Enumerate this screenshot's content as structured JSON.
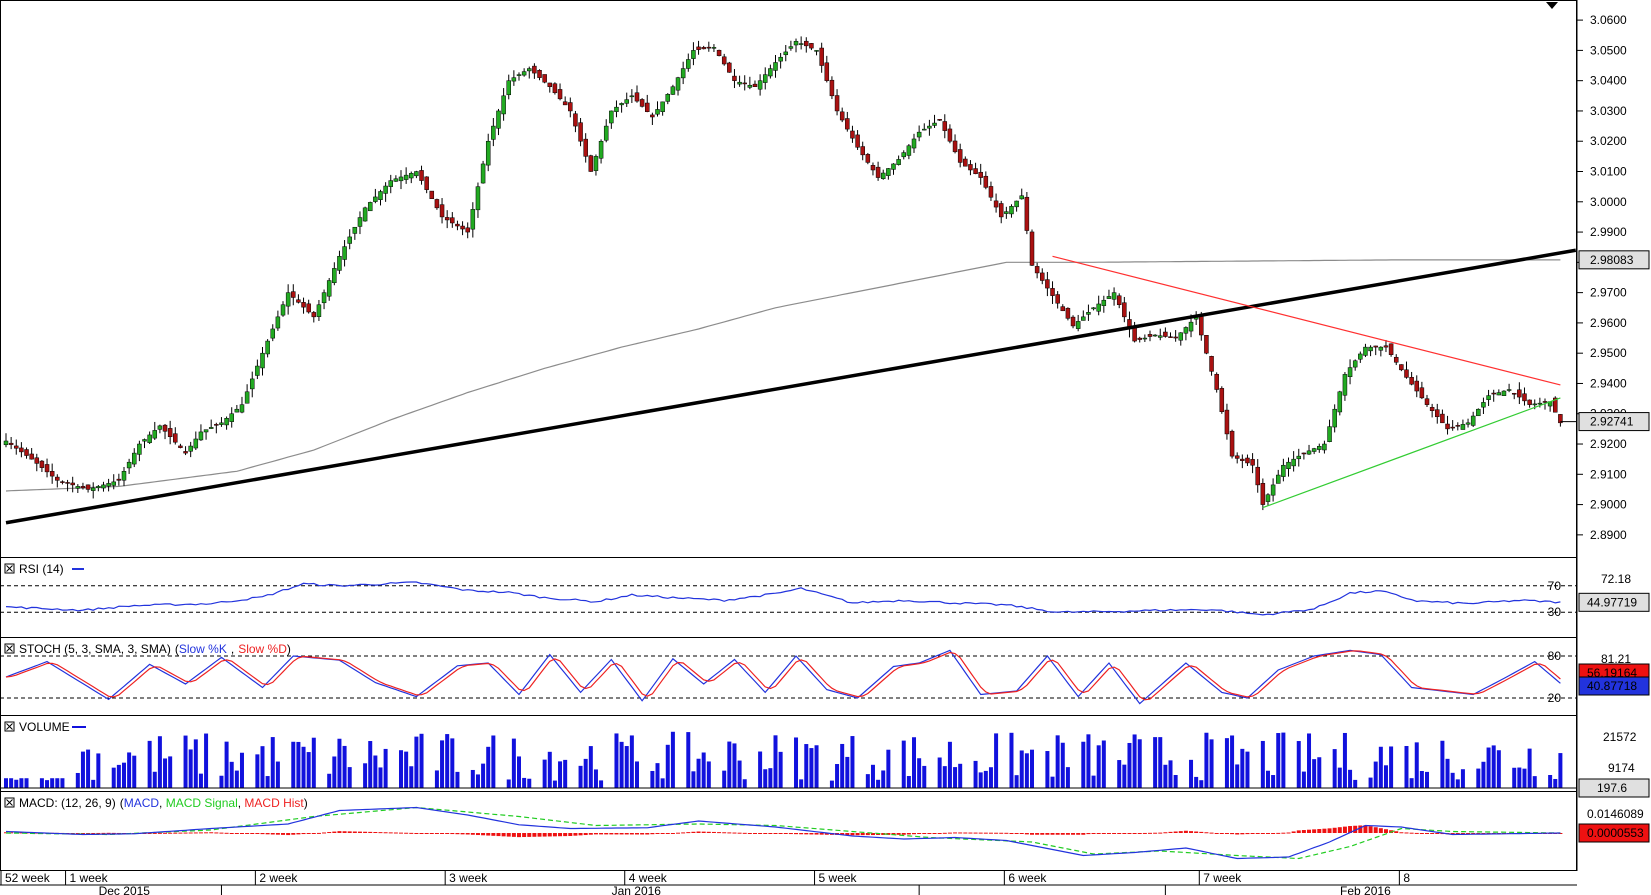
{
  "colors": {
    "bull": "#22aa22",
    "bear": "#aa1111",
    "sma": "#8c8c8c",
    "trend_black": "#000000",
    "trend_red": "#ff3030",
    "trend_green": "#33cc33",
    "rsi": "#2233dd",
    "stoch_k": "#2233dd",
    "stoch_d": "#ee2222",
    "volume": "#1111dd",
    "macd": "#2233dd",
    "macd_signal": "#22cc22",
    "macd_hist": "#ee1111",
    "last_price_box": "#e0e0e0",
    "red_box": "#ee1111"
  },
  "chart_data": {
    "type": "candlestick",
    "price": {
      "ylim": [
        2.885,
        3.064
      ],
      "ticks": [
        "2.8900",
        "2.9000",
        "2.9100",
        "2.9200",
        "2.9300",
        "2.9400",
        "2.9500",
        "2.9600",
        "2.9700",
        "2.9800",
        "2.9900",
        "3.0000",
        "3.0100",
        "3.0200",
        "3.0300",
        "3.0400",
        "3.0500",
        "3.0600"
      ],
      "last_price": "2.92741",
      "sma_label": "2.98083",
      "anchors": [
        [
          0,
          2.921
        ],
        [
          5,
          2.915
        ],
        [
          10,
          2.908
        ],
        [
          16,
          2.905
        ],
        [
          22,
          2.908
        ],
        [
          26,
          2.92
        ],
        [
          30,
          2.926
        ],
        [
          35,
          2.917
        ],
        [
          38,
          2.924
        ],
        [
          42,
          2.927
        ],
        [
          46,
          2.933
        ],
        [
          50,
          2.95
        ],
        [
          55,
          2.97
        ],
        [
          60,
          2.962
        ],
        [
          65,
          2.982
        ],
        [
          70,
          2.998
        ],
        [
          75,
          3.007
        ],
        [
          80,
          3.01
        ],
        [
          85,
          2.995
        ],
        [
          90,
          2.99
        ],
        [
          94,
          3.02
        ],
        [
          98,
          3.04
        ],
        [
          102,
          3.044
        ],
        [
          106,
          3.038
        ],
        [
          110,
          3.03
        ],
        [
          114,
          3.01
        ],
        [
          118,
          3.03
        ],
        [
          122,
          3.035
        ],
        [
          126,
          3.028
        ],
        [
          130,
          3.038
        ],
        [
          134,
          3.05
        ],
        [
          138,
          3.051
        ],
        [
          142,
          3.04
        ],
        [
          146,
          3.038
        ],
        [
          150,
          3.046
        ],
        [
          154,
          3.053
        ],
        [
          158,
          3.05
        ],
        [
          162,
          3.03
        ],
        [
          166,
          3.018
        ],
        [
          170,
          3.008
        ],
        [
          174,
          3.014
        ],
        [
          178,
          3.023
        ],
        [
          182,
          3.027
        ],
        [
          186,
          3.013
        ],
        [
          190,
          3.008
        ],
        [
          194,
          2.995
        ],
        [
          198,
          3.002
        ],
        [
          200,
          2.979
        ],
        [
          204,
          2.969
        ],
        [
          208,
          2.959
        ],
        [
          212,
          2.965
        ],
        [
          216,
          2.97
        ],
        [
          220,
          2.954
        ],
        [
          224,
          2.956
        ],
        [
          228,
          2.955
        ],
        [
          232,
          2.962
        ],
        [
          236,
          2.938
        ],
        [
          239,
          2.916
        ],
        [
          243,
          2.913
        ],
        [
          245,
          2.9
        ],
        [
          249,
          2.913
        ],
        [
          253,
          2.917
        ],
        [
          257,
          2.92
        ],
        [
          261,
          2.943
        ],
        [
          265,
          2.952
        ],
        [
          269,
          2.952
        ],
        [
          273,
          2.942
        ],
        [
          277,
          2.933
        ],
        [
          281,
          2.925
        ],
        [
          285,
          2.927
        ],
        [
          289,
          2.936
        ],
        [
          293,
          2.938
        ],
        [
          297,
          2.933
        ],
        [
          301,
          2.934
        ],
        [
          303,
          2.927
        ]
      ],
      "sma_anchors": [
        [
          0,
          2.9045
        ],
        [
          22,
          2.906
        ],
        [
          45,
          2.911
        ],
        [
          60,
          2.918
        ],
        [
          75,
          2.928
        ],
        [
          90,
          2.937
        ],
        [
          105,
          2.945
        ],
        [
          120,
          2.952
        ],
        [
          135,
          2.958
        ],
        [
          150,
          2.965
        ],
        [
          165,
          2.97
        ],
        [
          180,
          2.975
        ],
        [
          195,
          2.98
        ],
        [
          210,
          2.98
        ],
        [
          240,
          2.9804
        ],
        [
          270,
          2.9808
        ],
        [
          303,
          2.9808
        ]
      ],
      "trendlines": [
        {
          "color": "trend_black",
          "from": [
            0,
            2.894
          ],
          "to": [
            306,
            2.984
          ]
        },
        {
          "color": "trend_red",
          "from": [
            204,
            2.982
          ],
          "to": [
            303,
            2.9395
          ]
        },
        {
          "color": "trend_green",
          "from": [
            245,
            2.899
          ],
          "to": [
            303,
            2.9352
          ]
        }
      ]
    },
    "rsi": {
      "title": "RSI (14)",
      "levels": [
        "70",
        "30"
      ],
      "value_label": "72.18",
      "current": "44.97719",
      "anchors": [
        [
          0,
          38
        ],
        [
          15,
          33
        ],
        [
          25,
          40
        ],
        [
          40,
          43
        ],
        [
          50,
          53
        ],
        [
          58,
          73
        ],
        [
          65,
          70
        ],
        [
          80,
          75
        ],
        [
          90,
          63
        ],
        [
          98,
          60
        ],
        [
          105,
          52
        ],
        [
          115,
          46
        ],
        [
          122,
          56
        ],
        [
          130,
          52
        ],
        [
          140,
          48
        ],
        [
          150,
          58
        ],
        [
          155,
          66
        ],
        [
          165,
          44
        ],
        [
          175,
          48
        ],
        [
          185,
          44
        ],
        [
          195,
          41
        ],
        [
          205,
          30
        ],
        [
          215,
          31
        ],
        [
          225,
          33
        ],
        [
          235,
          34
        ],
        [
          240,
          30
        ],
        [
          245,
          26
        ],
        [
          255,
          35
        ],
        [
          262,
          59
        ],
        [
          268,
          62
        ],
        [
          275,
          47
        ],
        [
          285,
          43
        ],
        [
          295,
          48
        ],
        [
          303,
          45
        ]
      ]
    },
    "stoch": {
      "title": "STOCH (5, 3, SMA, 3, SMA)",
      "k_label": "Slow %K",
      "d_label": "Slow %D",
      "levels": [
        "80",
        "20"
      ],
      "value_label": "81.21",
      "k_current": "40.87718",
      "d_current": "56.19164",
      "anchors": [
        [
          0,
          50
        ],
        [
          8,
          72
        ],
        [
          20,
          18
        ],
        [
          28,
          68
        ],
        [
          35,
          40
        ],
        [
          42,
          78
        ],
        [
          50,
          35
        ],
        [
          56,
          80
        ],
        [
          65,
          74
        ],
        [
          72,
          42
        ],
        [
          80,
          22
        ],
        [
          88,
          66
        ],
        [
          94,
          70
        ],
        [
          100,
          25
        ],
        [
          106,
          82
        ],
        [
          112,
          28
        ],
        [
          118,
          75
        ],
        [
          124,
          16
        ],
        [
          130,
          76
        ],
        [
          136,
          40
        ],
        [
          142,
          75
        ],
        [
          148,
          28
        ],
        [
          154,
          80
        ],
        [
          160,
          32
        ],
        [
          166,
          20
        ],
        [
          173,
          65
        ],
        [
          178,
          70
        ],
        [
          184,
          88
        ],
        [
          190,
          25
        ],
        [
          197,
          30
        ],
        [
          203,
          80
        ],
        [
          209,
          22
        ],
        [
          215,
          70
        ],
        [
          221,
          12
        ],
        [
          230,
          70
        ],
        [
          237,
          28
        ],
        [
          242,
          20
        ],
        [
          248,
          60
        ],
        [
          255,
          80
        ],
        [
          262,
          88
        ],
        [
          268,
          82
        ],
        [
          274,
          35
        ],
        [
          280,
          30
        ],
        [
          286,
          25
        ],
        [
          292,
          48
        ],
        [
          298,
          72
        ],
        [
          303,
          41
        ]
      ]
    },
    "volume": {
      "title": "VOLUME",
      "ticks": [
        "21572",
        "9174"
      ],
      "current": "197.6",
      "ylim": [
        0,
        27000
      ]
    },
    "macd": {
      "title": "MACD: (12, 26, 9)",
      "labels": [
        "MACD",
        "MACD Signal",
        "MACD Hist"
      ],
      "value_label": "0.0146089",
      "current": "0.0000553",
      "macd_anchors": [
        [
          0,
          0.001
        ],
        [
          15,
          -0.001
        ],
        [
          25,
          -0.0005
        ],
        [
          40,
          0.003
        ],
        [
          55,
          0.006
        ],
        [
          65,
          0.015
        ],
        [
          80,
          0.017
        ],
        [
          90,
          0.012
        ],
        [
          100,
          0.0055
        ],
        [
          110,
          0.003
        ],
        [
          125,
          0.0035
        ],
        [
          135,
          0.008
        ],
        [
          150,
          0.004
        ],
        [
          165,
          -0.002
        ],
        [
          175,
          -0.004
        ],
        [
          185,
          -0.003
        ],
        [
          195,
          -0.005
        ],
        [
          210,
          -0.015
        ],
        [
          220,
          -0.013
        ],
        [
          230,
          -0.01
        ],
        [
          240,
          -0.017
        ],
        [
          250,
          -0.016
        ],
        [
          258,
          -0.006
        ],
        [
          265,
          0.005
        ],
        [
          272,
          0.004
        ],
        [
          282,
          -0.001
        ],
        [
          303,
          0.0
        ]
      ],
      "signal_anchors": [
        [
          0,
          0.0
        ],
        [
          20,
          -0.001
        ],
        [
          40,
          0.002
        ],
        [
          60,
          0.011
        ],
        [
          80,
          0.017
        ],
        [
          100,
          0.011
        ],
        [
          115,
          0.005
        ],
        [
          135,
          0.006
        ],
        [
          150,
          0.005
        ],
        [
          165,
          0.001
        ],
        [
          180,
          -0.003
        ],
        [
          200,
          -0.006
        ],
        [
          212,
          -0.014
        ],
        [
          225,
          -0.012
        ],
        [
          240,
          -0.015
        ],
        [
          252,
          -0.017
        ],
        [
          262,
          -0.009
        ],
        [
          272,
          0.003
        ],
        [
          282,
          0.001
        ],
        [
          303,
          0.0
        ]
      ]
    },
    "x_axis": {
      "week_labels": [
        "52 week",
        "1 week",
        "2 week",
        "3 week",
        "4 week",
        "5 week",
        "6 week",
        "7 week",
        "8"
      ],
      "month_labels": [
        "Dec 2015",
        "Jan 2016",
        "Feb 2016"
      ]
    }
  }
}
